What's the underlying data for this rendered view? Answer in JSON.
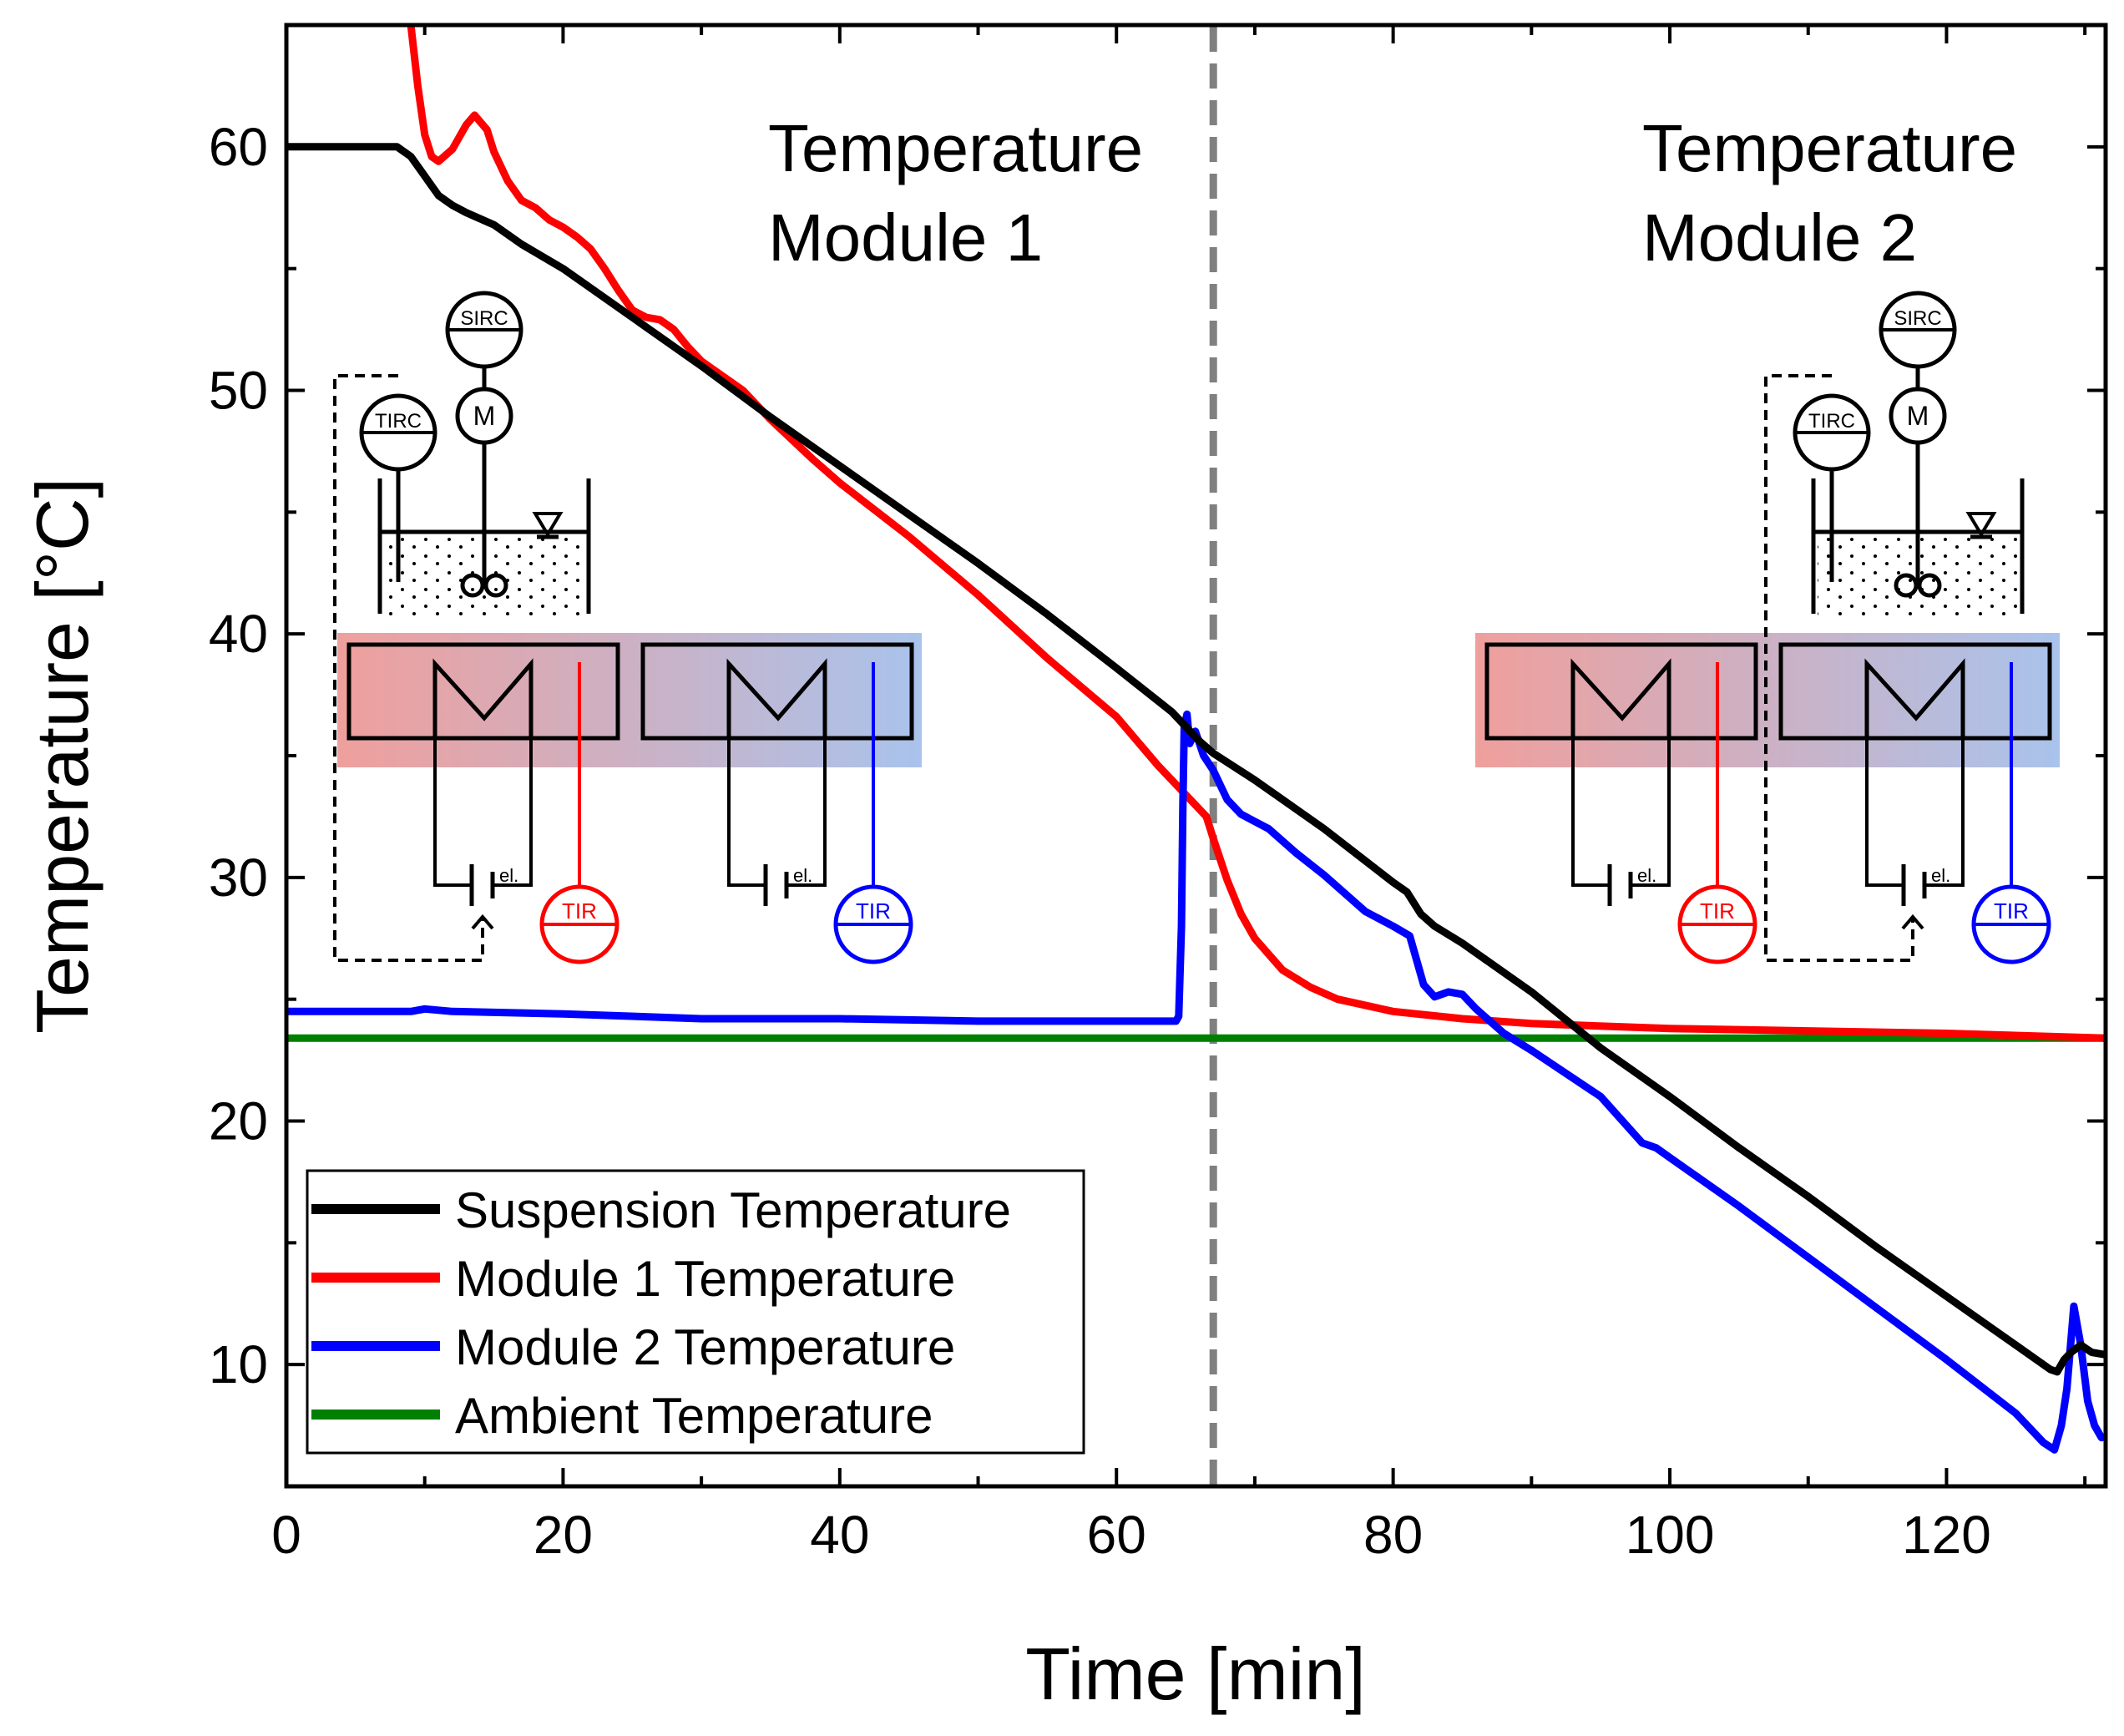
{
  "chart_data": {
    "type": "line",
    "title": "",
    "xlabel": "Time [min]",
    "ylabel": "Temperature [°C]",
    "xlim": [
      0,
      131.5
    ],
    "ylim": [
      5,
      65
    ],
    "xticks": [
      0,
      20,
      40,
      60,
      80,
      100,
      120
    ],
    "yticks": [
      10,
      20,
      30,
      40,
      50,
      60
    ],
    "legend_position": "bottom-left",
    "vline": {
      "x": 67,
      "style": "dashed",
      "color": "#808080"
    },
    "annotations": [
      {
        "lines": [
          "Temperature",
          "Module 1"
        ],
        "x": 35,
        "y": 60
      },
      {
        "lines": [
          "Temperature",
          "Module 2"
        ],
        "x": 98.5,
        "y": 60
      }
    ],
    "series": [
      {
        "name": "Suspension Temperature",
        "color": "#000000",
        "points": [
          [
            0,
            60
          ],
          [
            3,
            60
          ],
          [
            5,
            60
          ],
          [
            8,
            60
          ],
          [
            9,
            59.6
          ],
          [
            10,
            58.8
          ],
          [
            11,
            58
          ],
          [
            12,
            57.6
          ],
          [
            13,
            57.3
          ],
          [
            15,
            56.8
          ],
          [
            17,
            56
          ],
          [
            20,
            55
          ],
          [
            25,
            53
          ],
          [
            30,
            51
          ],
          [
            35,
            48.9
          ],
          [
            40,
            46.9
          ],
          [
            45,
            44.9
          ],
          [
            50,
            42.9
          ],
          [
            55,
            40.8
          ],
          [
            60,
            38.6
          ],
          [
            64,
            36.8
          ],
          [
            66,
            35.6
          ],
          [
            67,
            35.1
          ],
          [
            70,
            34
          ],
          [
            75,
            32
          ],
          [
            80,
            29.8
          ],
          [
            81,
            29.4
          ],
          [
            82,
            28.5
          ],
          [
            83,
            28
          ],
          [
            85,
            27.3
          ],
          [
            90,
            25.3
          ],
          [
            95,
            23
          ],
          [
            100,
            21
          ],
          [
            105,
            18.9
          ],
          [
            110,
            16.9
          ],
          [
            115,
            14.8
          ],
          [
            120,
            12.8
          ],
          [
            125,
            10.8
          ],
          [
            127.5,
            9.8
          ],
          [
            128,
            9.7
          ],
          [
            128.5,
            10.2
          ],
          [
            129,
            10.5
          ],
          [
            129.7,
            10.8
          ],
          [
            130.5,
            10.5
          ],
          [
            131.5,
            10.4
          ]
        ]
      },
      {
        "name": "Module 1 Temperature",
        "color": "#ff0000",
        "points": [
          [
            9,
            65
          ],
          [
            9.5,
            62.5
          ],
          [
            10,
            60.5
          ],
          [
            10.5,
            59.6
          ],
          [
            11,
            59.4
          ],
          [
            12,
            59.9
          ],
          [
            13,
            60.9
          ],
          [
            13.6,
            61.3
          ],
          [
            14.5,
            60.7
          ],
          [
            15,
            59.8
          ],
          [
            16,
            58.6
          ],
          [
            17,
            57.8
          ],
          [
            18,
            57.5
          ],
          [
            19,
            57
          ],
          [
            20,
            56.7
          ],
          [
            21,
            56.3
          ],
          [
            22,
            55.8
          ],
          [
            23,
            55
          ],
          [
            24,
            54.1
          ],
          [
            25,
            53.3
          ],
          [
            26,
            53
          ],
          [
            27,
            52.9
          ],
          [
            28,
            52.5
          ],
          [
            29,
            51.8
          ],
          [
            30,
            51.2
          ],
          [
            33,
            50
          ],
          [
            35,
            48.8
          ],
          [
            38,
            47.2
          ],
          [
            40,
            46.2
          ],
          [
            45,
            44
          ],
          [
            50,
            41.6
          ],
          [
            55,
            39
          ],
          [
            60,
            36.6
          ],
          [
            63,
            34.6
          ],
          [
            65,
            33.4
          ],
          [
            66.5,
            32.5
          ],
          [
            67,
            31.6
          ],
          [
            68,
            29.9
          ],
          [
            69,
            28.5
          ],
          [
            70,
            27.5
          ],
          [
            72,
            26.2
          ],
          [
            74,
            25.5
          ],
          [
            76,
            25
          ],
          [
            80,
            24.5
          ],
          [
            85,
            24.2
          ],
          [
            90,
            24
          ],
          [
            100,
            23.8
          ],
          [
            110,
            23.7
          ],
          [
            120,
            23.6
          ],
          [
            131.5,
            23.4
          ]
        ]
      },
      {
        "name": "Module 2 Temperature",
        "color": "#0000ff",
        "points": [
          [
            0,
            24.5
          ],
          [
            5,
            24.5
          ],
          [
            9,
            24.5
          ],
          [
            10,
            24.6
          ],
          [
            12,
            24.5
          ],
          [
            20,
            24.4
          ],
          [
            30,
            24.2
          ],
          [
            40,
            24.2
          ],
          [
            50,
            24.1
          ],
          [
            60,
            24.1
          ],
          [
            64.3,
            24.1
          ],
          [
            64.5,
            24.3
          ],
          [
            64.7,
            28
          ],
          [
            64.8,
            33
          ],
          [
            64.9,
            36.2
          ],
          [
            65.1,
            36.7
          ],
          [
            65.3,
            35.5
          ],
          [
            65.7,
            36
          ],
          [
            66.3,
            35
          ],
          [
            67,
            34.4
          ],
          [
            68,
            33.2
          ],
          [
            69,
            32.6
          ],
          [
            70,
            32.3
          ],
          [
            71,
            32
          ],
          [
            73,
            31
          ],
          [
            75,
            30.1
          ],
          [
            78,
            28.6
          ],
          [
            80,
            28
          ],
          [
            81.2,
            27.6
          ],
          [
            81.7,
            26.6
          ],
          [
            82.2,
            25.6
          ],
          [
            83,
            25.1
          ],
          [
            84,
            25.3
          ],
          [
            85,
            25.2
          ],
          [
            86,
            24.6
          ],
          [
            88,
            23.6
          ],
          [
            90,
            22.9
          ],
          [
            95,
            21
          ],
          [
            98,
            19.1
          ],
          [
            99,
            18.9
          ],
          [
            100,
            18.5
          ],
          [
            105,
            16.5
          ],
          [
            110,
            14.4
          ],
          [
            115,
            12.3
          ],
          [
            120,
            10.2
          ],
          [
            125,
            8
          ],
          [
            127,
            6.8
          ],
          [
            127.8,
            6.5
          ],
          [
            128.3,
            7.5
          ],
          [
            128.7,
            9
          ],
          [
            129.2,
            12.4
          ],
          [
            129.7,
            10.8
          ],
          [
            130.2,
            8.5
          ],
          [
            130.7,
            7.5
          ],
          [
            131.2,
            7
          ]
        ]
      },
      {
        "name": "Ambient Temperature",
        "color": "#008000",
        "points": [
          [
            0,
            23.4
          ],
          [
            131.5,
            23.4
          ]
        ]
      }
    ],
    "insets": [
      {
        "name": "Module 1",
        "instruments": [
          "TIRC",
          "SIRC",
          "M",
          "TIR",
          "TIR"
        ],
        "labels": [
          "el.",
          "el."
        ]
      },
      {
        "name": "Module 2",
        "instruments": [
          "TIRC",
          "SIRC",
          "M",
          "TIR",
          "TIR"
        ],
        "labels": [
          "el.",
          "el."
        ]
      }
    ]
  }
}
